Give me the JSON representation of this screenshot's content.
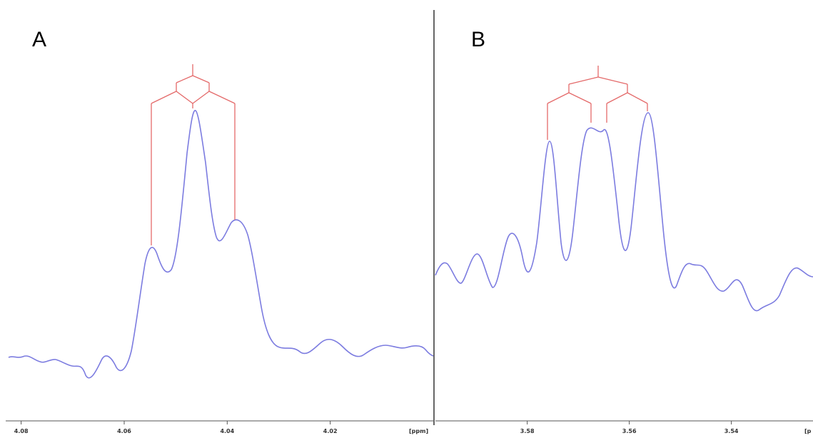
{
  "panels": [
    {
      "label": "A",
      "unit_label": "[ppm]"
    },
    {
      "label": "B",
      "unit_label": "[p"
    }
  ],
  "chart_data": [
    {
      "type": "line",
      "title": "",
      "xlabel": "[ppm]",
      "ylabel": "",
      "x_reversed": true,
      "xlim": [
        4.083,
        4.0
      ],
      "x_ticks": [
        "4.08",
        "4.06",
        "4.04",
        "4.02"
      ],
      "series": [
        {
          "x": [
            4.083,
            4.08,
            4.077,
            4.073,
            4.07,
            4.067,
            4.064,
            4.061,
            4.059,
            4.057,
            4.055,
            4.052,
            4.049,
            4.046,
            4.044,
            4.042,
            4.04,
            4.038,
            4.035,
            4.032,
            4.029,
            4.026,
            4.022,
            4.019,
            4.015,
            4.011,
            4.007,
            4.003,
            4.0
          ],
          "y": [
            0.02,
            0.03,
            0.0,
            -0.05,
            0.04,
            -0.02,
            0.08,
            0.48,
            0.57,
            0.52,
            0.72,
            1.0,
            0.68,
            0.57,
            0.62,
            0.55,
            0.2,
            0.05,
            0.07,
            0.01,
            0.06,
            0.07,
            0.03,
            0.06,
            0.01,
            0.06,
            0.06,
            0.03,
            0.01
          ]
        }
      ],
      "annotations": {
        "multiplet": "doublet of doublets",
        "peak_ppm": [
          4.0575,
          4.0492,
          4.0414
        ]
      }
    },
    {
      "type": "line",
      "title": "",
      "xlabel": "[p",
      "ylabel": "",
      "x_reversed": true,
      "xlim": [
        3.598,
        3.524
      ],
      "x_ticks": [
        "3.58",
        "3.56",
        "3.54"
      ],
      "series": [
        {
          "x": [
            3.598,
            3.596,
            3.594,
            3.592,
            3.59,
            3.588,
            3.585,
            3.583,
            3.58,
            3.578,
            3.576,
            3.574,
            3.572,
            3.57,
            3.568,
            3.566,
            3.564,
            3.561,
            3.559,
            3.557,
            3.555,
            3.553,
            3.551,
            3.549,
            3.547,
            3.545,
            3.543,
            3.541,
            3.539,
            3.537,
            3.535,
            3.532,
            3.53,
            3.528,
            3.526,
            3.524
          ],
          "y": [
            0.4,
            0.43,
            0.34,
            0.45,
            0.3,
            0.55,
            0.3,
            0.22,
            0.29,
            0.86,
            0.4,
            0.4,
            0.92,
            0.95,
            0.9,
            0.93,
            0.42,
            0.94,
            0.95,
            0.82,
            0.32,
            0.28,
            0.42,
            0.37,
            0.36,
            0.4,
            0.32,
            0.37,
            0.24,
            0.3,
            0.25,
            0.33,
            0.18,
            0.22,
            0.38,
            0.36
          ]
        }
      ],
      "annotations": {
        "multiplet": "doublet of doublets",
        "peak_ppm": [
          3.5718,
          3.5643,
          3.5599,
          3.5515
        ]
      }
    }
  ]
}
